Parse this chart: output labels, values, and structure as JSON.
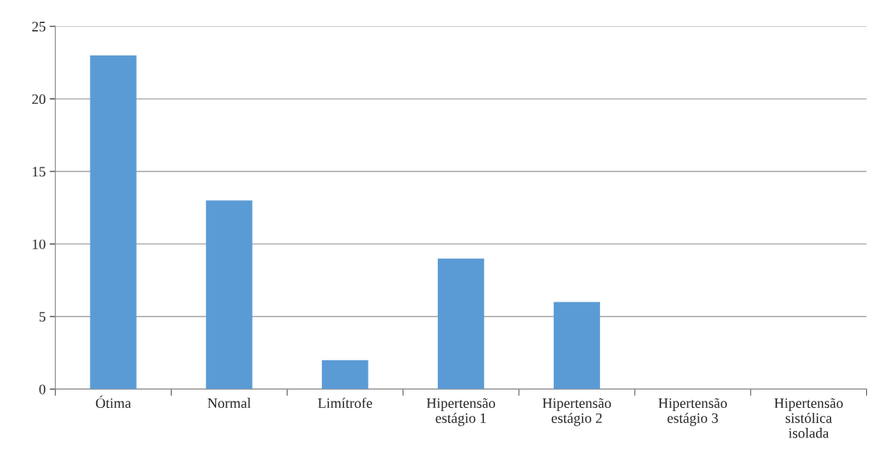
{
  "chart_data": {
    "type": "bar",
    "categories": [
      "Ótima",
      "Normal",
      "Limítrofe",
      "Hipertensão\nestágio 1",
      "Hipertensão\nestágio 2",
      "Hipertensão\nestágio 3",
      "Hipertensão\nsistólica\nisolada"
    ],
    "values": [
      23,
      13,
      2,
      9,
      6,
      0,
      0
    ],
    "color": "#5b9bd5",
    "ylim": [
      0,
      25
    ],
    "yticks": [
      0,
      5,
      10,
      15,
      20,
      25
    ],
    "grid": "y",
    "legend": false
  }
}
